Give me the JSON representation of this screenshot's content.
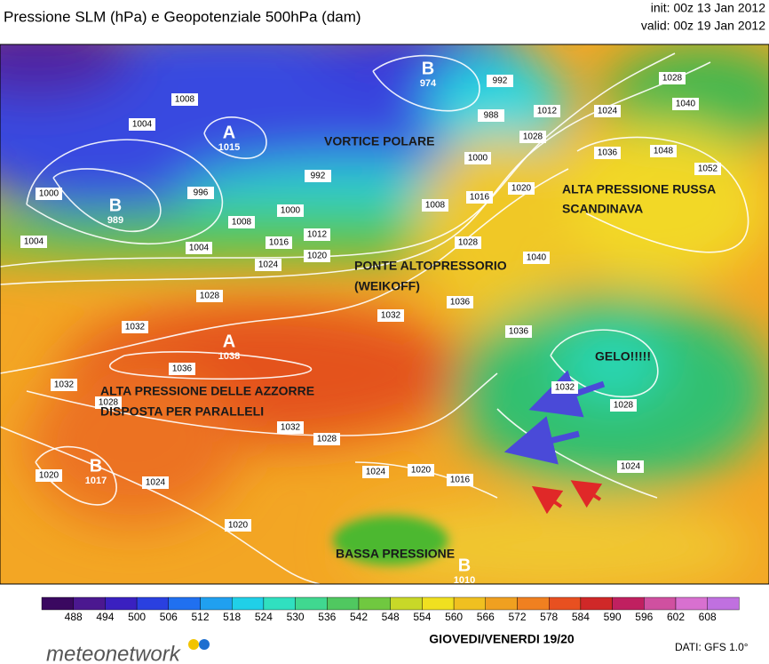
{
  "header": {
    "title": "Pressione SLM (hPa) e Geopotenziale 500hPa (dam)",
    "init": "init: 00z 13 Jan 2012",
    "valid": "valid: 00z 19 Jan 2012"
  },
  "annotations": [
    "VORTICE POLARE",
    "ALTA PRESSIONE RUSSA",
    "SCANDINAVA",
    "PONTE ALTOPRESSORIO",
    "(WEIKOFF)",
    "GELO!!!!!",
    "ALTA PRESSIONE DELLE AZZORRE",
    "DISPOSTA PER PARALLELI",
    "BASSA PRESSIONE"
  ],
  "centers": [
    {
      "letter": "B",
      "value": "974"
    },
    {
      "letter": "A",
      "value": "1015"
    },
    {
      "letter": "B",
      "value": "989"
    },
    {
      "letter": "A",
      "value": "1038"
    },
    {
      "letter": "B",
      "value": "1017"
    },
    {
      "letter": "B",
      "value": "1010"
    }
  ],
  "isobar_labels": [
    "1008",
    "1004",
    "1000",
    "1004",
    "996",
    "992",
    "1000",
    "1008",
    "1004",
    "1016",
    "1012",
    "1020",
    "1024",
    "1028",
    "1032",
    "1036",
    "1032",
    "1028",
    "1032",
    "1028",
    "1024",
    "1020",
    "1016",
    "1024",
    "1020",
    "1020",
    "992",
    "988",
    "1000",
    "1008",
    "1016",
    "1020",
    "1028",
    "1012",
    "1024",
    "1028",
    "1040",
    "1048",
    "1052",
    "1036",
    "1028",
    "1036",
    "1036",
    "1040",
    "1032",
    "1028",
    "1024",
    "1032"
  ],
  "colorbar": [
    "488",
    "494",
    "500",
    "506",
    "512",
    "518",
    "524",
    "530",
    "536",
    "542",
    "548",
    "554",
    "560",
    "566",
    "572",
    "578",
    "584",
    "590",
    "596",
    "602",
    "608"
  ],
  "footer": {
    "logo": "meteonetwork",
    "caption": "GIOVEDI/VENERDI 19/20",
    "source": "DATI:  GFS 1.0°"
  }
}
